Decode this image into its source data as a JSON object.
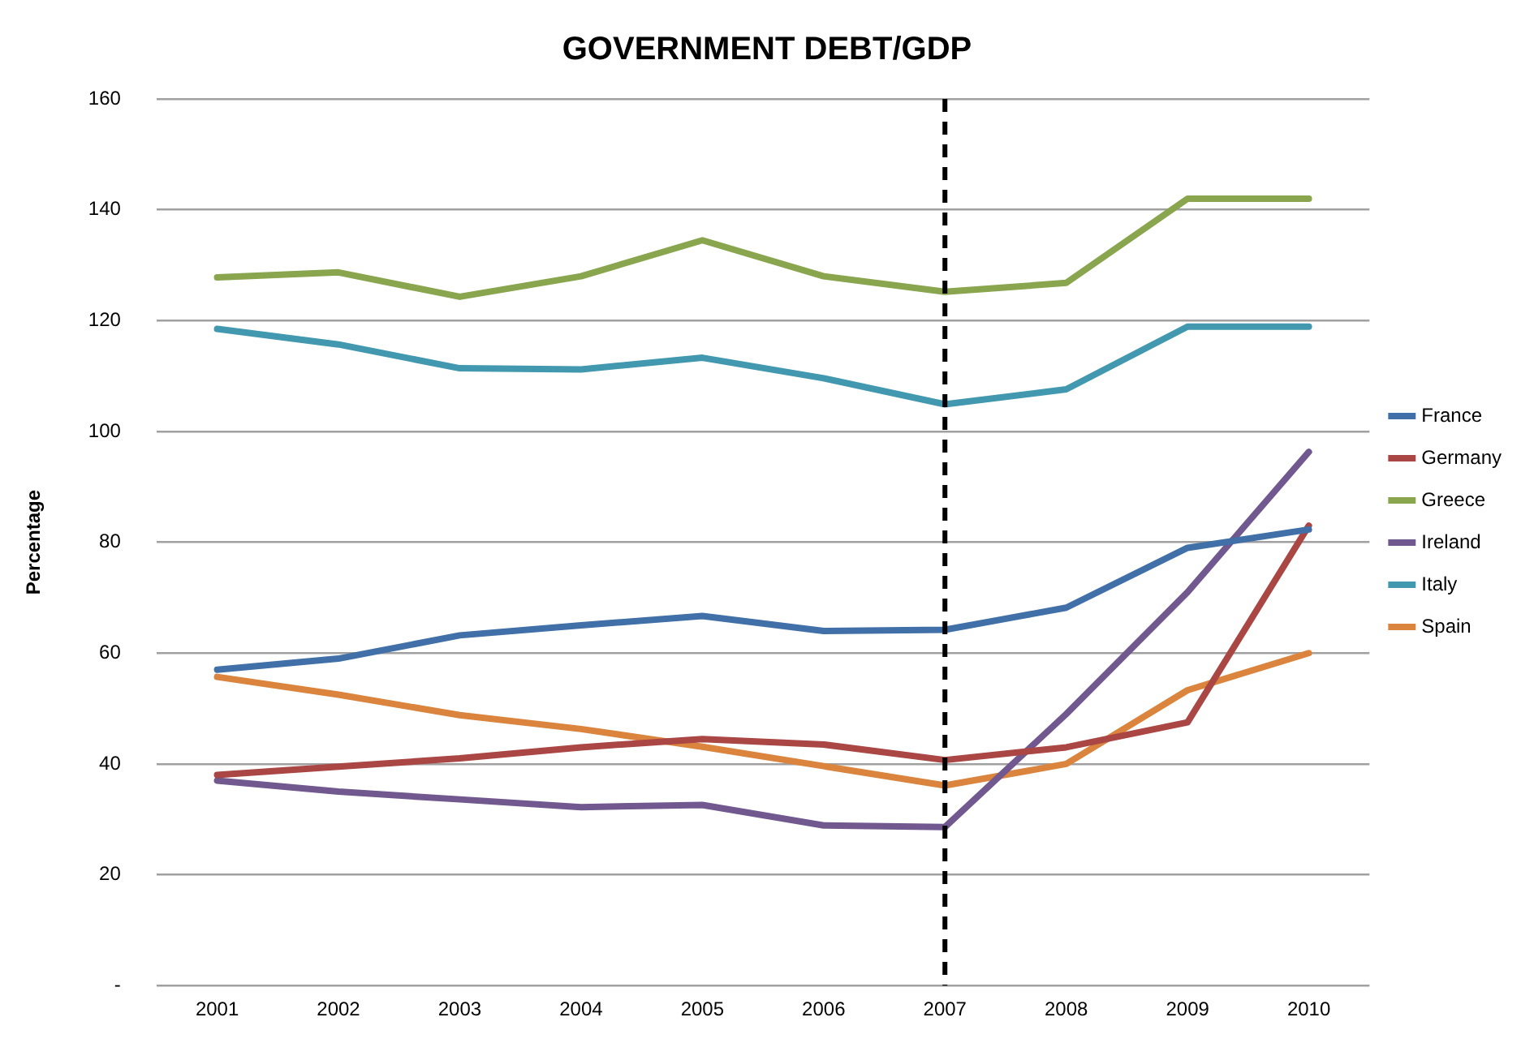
{
  "chart_data": {
    "type": "line",
    "title": "GOVERNMENT DEBT/GDP",
    "ylabel": "Percentage",
    "categories": [
      "2001",
      "2002",
      "2003",
      "2004",
      "2005",
      "2006",
      "2007",
      "2008",
      "2009",
      "2010"
    ],
    "series": [
      {
        "name": "France",
        "color": "#4170a8",
        "values": [
          57,
          59,
          63.2,
          65,
          66.7,
          64,
          64.2,
          68.2,
          79,
          82.3
        ]
      },
      {
        "name": "Germany",
        "color": "#aa4643",
        "values": [
          38,
          39.5,
          41,
          43,
          44.5,
          43.5,
          40.7,
          43,
          47.5,
          83
        ]
      },
      {
        "name": "Greece",
        "color": "#89a54e",
        "values": [
          127.8,
          128.7,
          124.3,
          128,
          134.5,
          128,
          125.2,
          126.8,
          142,
          142
        ]
      },
      {
        "name": "Ireland",
        "color": "#71588f",
        "values": [
          37,
          35,
          33.6,
          32.2,
          32.6,
          28.9,
          28.6,
          49,
          71,
          96.3
        ]
      },
      {
        "name": "Italy",
        "color": "#4198af",
        "values": [
          118.5,
          115.7,
          111.4,
          111.2,
          113.3,
          109.6,
          104.9,
          107.6,
          118.9,
          118.9
        ]
      },
      {
        "name": "Spain",
        "color": "#db843d",
        "values": [
          55.7,
          52.5,
          48.8,
          46.3,
          43.1,
          39.6,
          36.1,
          40,
          53.3,
          60
        ]
      }
    ],
    "ylim": [
      0,
      160
    ],
    "yticks": [
      {
        "value": 0,
        "label": "-"
      },
      20,
      40,
      60,
      80,
      100,
      120,
      140,
      160
    ],
    "ref_lines": [
      {
        "axis": "x",
        "value": "2007",
        "color": "#000000",
        "line_style": "dashed"
      }
    ],
    "grid": "y",
    "legend": "right",
    "marker": "none",
    "line_style": "solid"
  }
}
